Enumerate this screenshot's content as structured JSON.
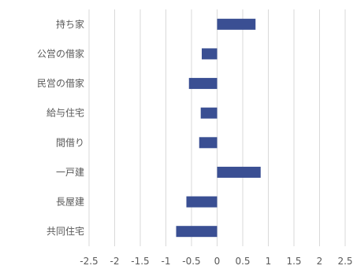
{
  "chart_data": {
    "type": "bar",
    "orientation": "horizontal",
    "categories": [
      "持ち家",
      "公営の借家",
      "民営の借家",
      "給与住宅",
      "間借り",
      "一戸建",
      "長屋建",
      "共同住宅"
    ],
    "values": [
      0.75,
      -0.3,
      -0.55,
      -0.32,
      -0.35,
      0.85,
      -0.6,
      -0.8
    ],
    "xlim": [
      -2.5,
      2.5
    ],
    "x_ticks": [
      "-2.5",
      "-2",
      "-1.5",
      "-1",
      "-0.5",
      "0",
      "0.5",
      "1",
      "1.5",
      "2",
      "2.5"
    ],
    "x_tick_values": [
      -2.5,
      -2,
      -1.5,
      -1,
      -0.5,
      0,
      0.5,
      1,
      1.5,
      2,
      2.5
    ],
    "grid": true,
    "legend": false,
    "bar_color": "#3a4f93"
  }
}
